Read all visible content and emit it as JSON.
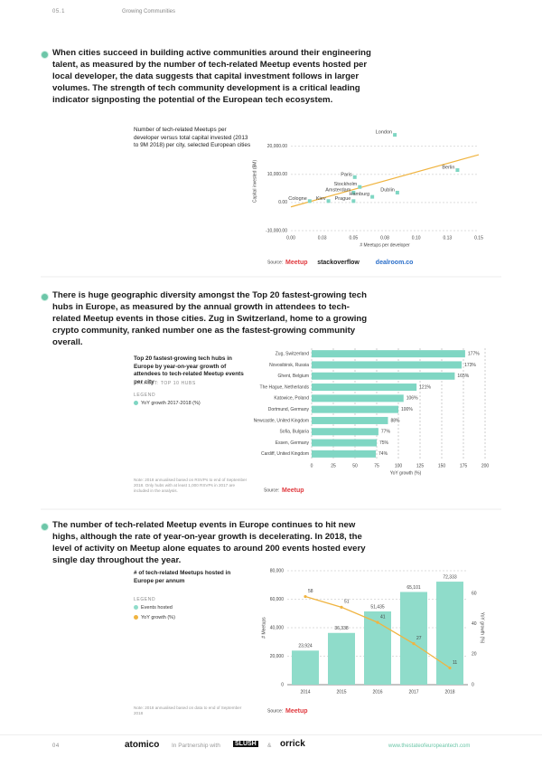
{
  "header": {
    "section": "05.1",
    "title": "Growing Communities"
  },
  "paragraphs": [
    "When cities succeed in building active communities around their engineering talent, as measured by the number of tech-related Meetup events hosted per local developer, the data suggests that capital investment follows in larger volumes. The strength of tech community development is a critical leading indicator signposting the potential of the European tech ecosystem.",
    "There is huge geographic diversity amongst the Top 20 fastest-growing tech hubs in Europe, as measured by the annual growth in attendees to tech-related Meetup events in those cities. Zug in Switzerland, home to a growing crypto community, ranked number one as the fastest-growing community overall.",
    "The number of tech-related Meetup events in Europe continues to hit new highs, although the rate of year-on-year growth is decelerating. In 2018, the level of activity on Meetup alone equates to around 200 events hosted every single day throughout the year."
  ],
  "chart_data": [
    {
      "type": "scatter",
      "title": "Number of tech-related Meetups per developer versus total capital invested (2013 to 9M 2018) per city, selected European cities",
      "x_label": "# Meetups per developer",
      "y_label": "Capital invested ($M)",
      "point_labels": [
        "London",
        "Berlin",
        "Paris",
        "Stockholm",
        "Amsterdam",
        "Dublin",
        "Hamburg",
        "Cologne",
        "Kiev",
        "Prague"
      ],
      "x": [
        0.083,
        0.133,
        0.051,
        0.055,
        0.05,
        0.085,
        0.065,
        0.015,
        0.03,
        0.05
      ],
      "values": [
        24000,
        11500,
        9000,
        5500,
        3500,
        3500,
        2000,
        500,
        500,
        500
      ],
      "color": "#7fd6c3",
      "trendline_color": "#f0b440",
      "xlim": [
        0,
        0.15
      ],
      "xticks": [
        {
          "value": 0,
          "label": "0.00"
        },
        {
          "value": 0.025,
          "label": "0.03"
        },
        {
          "value": 0.05,
          "label": "0.05"
        },
        {
          "value": 0.075,
          "label": "0.08"
        },
        {
          "value": 0.1,
          "label": "0.10"
        },
        {
          "value": 0.125,
          "label": "0.13"
        },
        {
          "value": 0.15,
          "label": "0.15"
        }
      ],
      "ylim": [
        -10000,
        25000
      ],
      "yticks": [
        {
          "value": -10000,
          "label": "-10,000.00"
        },
        {
          "value": 0,
          "label": "0.00"
        },
        {
          "value": 10000,
          "label": "10,000.00"
        },
        {
          "value": 20000,
          "label": "20,000.00"
        }
      ],
      "grid": true,
      "source_label": "Source:",
      "sources": [
        "Meetup",
        "stackoverflow",
        "dealroom.co"
      ]
    },
    {
      "type": "hbar",
      "title": "Top 20 fastest-growing tech hubs in Europe by year-on-year growth of attendees to tech-related Meetup events per city",
      "dataset_label": "DATASET: TOP 10 HUBS",
      "legend_title": "LEGEND",
      "categories": [
        "Zug, Switzerland",
        "Novosibirsk, Russia",
        "Ghent, Belgium",
        "The Hague, Netherlands",
        "Katowice, Poland",
        "Dortmund, Germany",
        "Newcastle, United Kingdom",
        "Sofia, Bulgaria",
        "Essen, Germany",
        "Cardiff, United Kingdom"
      ],
      "series": [
        {
          "name": "YoY growth 2017-2018 (%)",
          "color": "#7fd6c3",
          "values": [
            177,
            173,
            165,
            121,
            106,
            100,
            88,
            77,
            75,
            74
          ],
          "value_labels": [
            "177%",
            "173%",
            "165%",
            "121%",
            "106%",
            "100%",
            "88%",
            "77%",
            "75%",
            "74%"
          ]
        }
      ],
      "x_label": "YoY growth (%)",
      "xlim": [
        0,
        200
      ],
      "xticks": [
        0,
        25,
        50,
        75,
        100,
        125,
        150,
        175,
        200
      ],
      "grid": true,
      "note": "Note: 2018 annualised based on RSVPs to end of September 2018. Only hubs with at least 1,000 RSVPs in 2017 are included in the analysis.",
      "source_label": "Source:",
      "sources": [
        "Meetup"
      ]
    },
    {
      "type": "bar",
      "title": "# of tech-related Meetups hosted in Europe per annum",
      "legend_title": "LEGEND",
      "categories": [
        "2014",
        "2015",
        "2016",
        "2017",
        "2018"
      ],
      "series": [
        {
          "name": "Events hosted",
          "color": "#8fdcca",
          "values": [
            23924,
            36338,
            51435,
            65101,
            72333
          ],
          "value_labels": [
            "23,924",
            "36,338",
            "51,435",
            "65,101",
            "72,333"
          ]
        },
        {
          "name": "YoY growth (%)",
          "type": "line",
          "axis": "y2",
          "color": "#f0b440",
          "values": [
            58,
            51,
            41,
            27,
            11
          ]
        }
      ],
      "y_label": "# Meetups",
      "y2_label": "YoY growth (%)",
      "ylim": [
        0,
        80000
      ],
      "yticks": [
        0,
        {
          "value": 20000,
          "label": "20,000"
        },
        {
          "value": 40000,
          "label": "40,000"
        },
        {
          "value": 60000,
          "label": "60,000"
        },
        {
          "value": 80000,
          "label": "80,000"
        }
      ],
      "y2lim": [
        0,
        75
      ],
      "y2ticks": [
        0,
        20,
        40,
        60
      ],
      "grid": true,
      "note": "Note: 2018 annualised based on data to end of September 2018",
      "source_label": "Source:",
      "sources": [
        "Meetup"
      ]
    }
  ],
  "footer": {
    "page": "04",
    "brand": "atomico",
    "partner_text": "In Partnership with",
    "partners": [
      "SLUSH",
      "orrick"
    ],
    "amp": "&",
    "url": "www.thestateofeuropeantech.com"
  }
}
